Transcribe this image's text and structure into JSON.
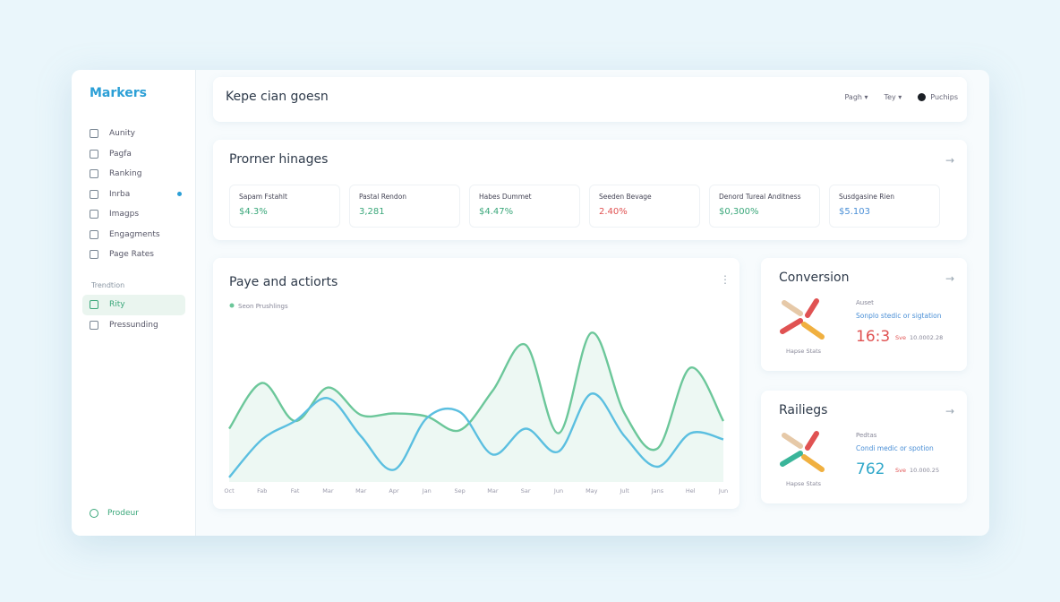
{
  "sidebar": {
    "brand": "Markers",
    "items": [
      {
        "label": "Aunity"
      },
      {
        "label": "Pagfa"
      },
      {
        "label": "Ranking"
      },
      {
        "label": "Inrba",
        "badge": true
      },
      {
        "label": "Imagps"
      },
      {
        "label": "Engagments"
      },
      {
        "label": "Page Rates"
      }
    ],
    "section": "Trendtion",
    "section_items": [
      {
        "label": "Rity",
        "active": true
      },
      {
        "label": "Pressunding"
      }
    ],
    "footer": "Prodeur"
  },
  "header": {
    "title": "Kepe cian goesn",
    "controls": [
      "Pagh",
      "Tey"
    ],
    "user": "Puchips"
  },
  "kpi_card": {
    "title": "Prorner hinages",
    "kpis": [
      {
        "label": "Sapam Fstahlt",
        "value": "$4.3%",
        "color": "#3aa77a"
      },
      {
        "label": "Pastal Rendon",
        "value": "3,281",
        "color": "#3aa77a"
      },
      {
        "label": "Habes Dummet",
        "value": "$4.47%",
        "color": "#3aa77a"
      },
      {
        "label": "Seeden Bevage",
        "value": "2.40%",
        "color": "#e05252"
      },
      {
        "label": "Denord Tureal Anditness",
        "value": "$0,300%",
        "color": "#3aa77a"
      },
      {
        "label": "Susdgasine Rien",
        "value": "$5.103",
        "color": "#4a8fd6"
      }
    ]
  },
  "chart_data": {
    "type": "line",
    "title": "Paye and actiorts",
    "categories": [
      "Oct",
      "Fab",
      "Fat",
      "Mar",
      "Mar",
      "Apr",
      "Jan",
      "Sep",
      "Mar",
      "Sar",
      "Jun",
      "May",
      "Jult",
      "Jans",
      "Hel",
      "Jun"
    ],
    "ylim": [
      0,
      100
    ],
    "legend": "Seon Prushlings",
    "series": [
      {
        "color": "#6cc79a",
        "values": [
          35,
          65,
          40,
          62,
          44,
          45,
          43,
          34,
          60,
          90,
          32,
          98,
          45,
          22,
          75,
          40
        ],
        "area": true
      },
      {
        "color": "#5bbfe0",
        "values": [
          3,
          28,
          40,
          55,
          30,
          8,
          42,
          46,
          18,
          35,
          20,
          58,
          30,
          10,
          32,
          28
        ]
      }
    ]
  },
  "side_cards": [
    {
      "title": "Conversion",
      "label": "Auset",
      "link": "Sonplo stedic or sigtation",
      "big": "16:3",
      "big_color": "#e05252",
      "tag": "Sve",
      "meta": "10.0002.28",
      "caption": "Hapse Stats"
    },
    {
      "title": "Railiegs",
      "label": "Pedtas",
      "link": "Condi medic or spotion",
      "big": "762",
      "big_color": "#2fa7c9",
      "tag": "Sve",
      "meta": "10.000.25",
      "caption": "Hapse Stats"
    }
  ]
}
